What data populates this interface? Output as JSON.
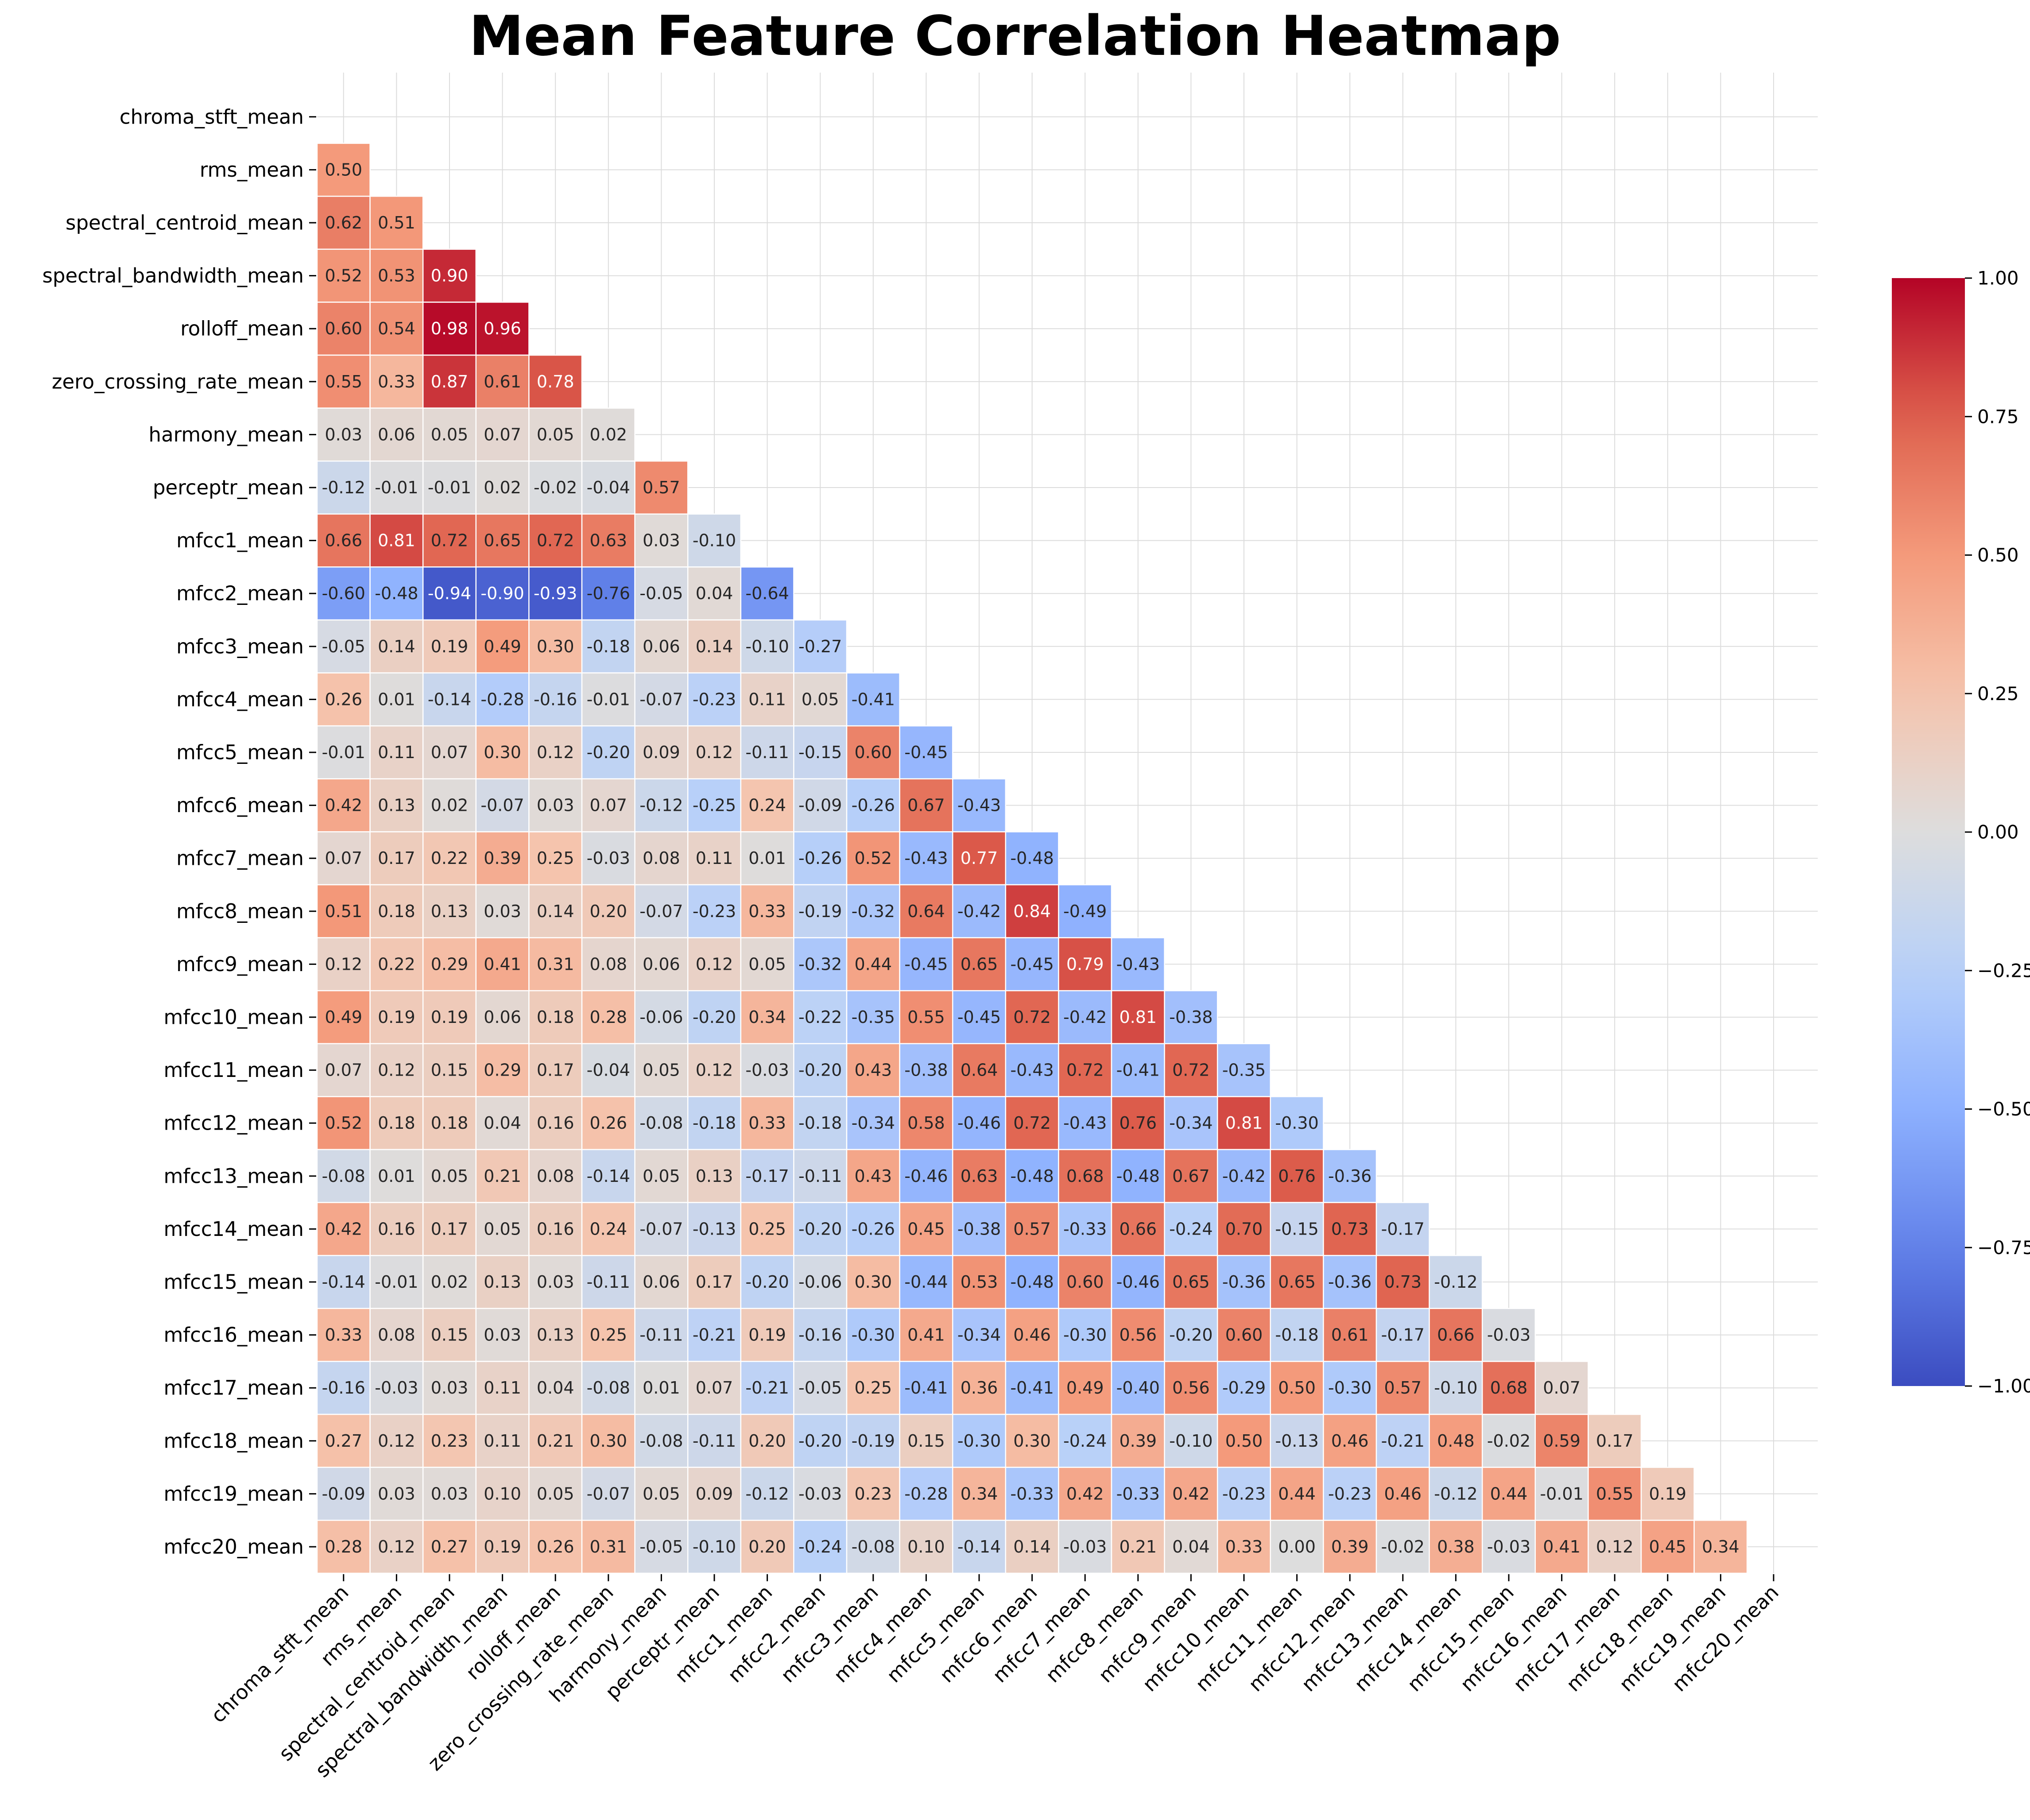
{
  "chart_data": {
    "type": "heatmap",
    "title": "Mean Feature Correlation Heatmap",
    "mask": "upper-triangle-and-diagonal",
    "labels": [
      "chroma_stft_mean",
      "rms_mean",
      "spectral_centroid_mean",
      "spectral_bandwidth_mean",
      "rolloff_mean",
      "zero_crossing_rate_mean",
      "harmony_mean",
      "perceptr_mean",
      "mfcc1_mean",
      "mfcc2_mean",
      "mfcc3_mean",
      "mfcc4_mean",
      "mfcc5_mean",
      "mfcc6_mean",
      "mfcc7_mean",
      "mfcc8_mean",
      "mfcc9_mean",
      "mfcc10_mean",
      "mfcc11_mean",
      "mfcc12_mean",
      "mfcc13_mean",
      "mfcc14_mean",
      "mfcc15_mean",
      "mfcc16_mean",
      "mfcc17_mean",
      "mfcc18_mean",
      "mfcc19_mean",
      "mfcc20_mean"
    ],
    "lower_triangle_values": [
      [],
      [
        0.5
      ],
      [
        0.62,
        0.51
      ],
      [
        0.52,
        0.53,
        0.9
      ],
      [
        0.6,
        0.54,
        0.98,
        0.96
      ],
      [
        0.55,
        0.33,
        0.87,
        0.61,
        0.78
      ],
      [
        0.03,
        0.06,
        0.05,
        0.07,
        0.05,
        0.02
      ],
      [
        -0.12,
        -0.01,
        -0.01,
        0.02,
        -0.02,
        -0.04,
        0.57
      ],
      [
        0.66,
        0.81,
        0.72,
        0.65,
        0.72,
        0.63,
        0.03,
        -0.1
      ],
      [
        -0.6,
        -0.48,
        -0.94,
        -0.9,
        -0.93,
        -0.76,
        -0.05,
        0.04,
        -0.64
      ],
      [
        -0.05,
        0.14,
        0.19,
        0.49,
        0.3,
        -0.18,
        0.06,
        0.14,
        -0.1,
        -0.27
      ],
      [
        0.26,
        0.01,
        -0.14,
        -0.28,
        -0.16,
        -0.01,
        -0.07,
        -0.23,
        0.11,
        0.05,
        -0.41
      ],
      [
        -0.01,
        0.11,
        0.07,
        0.3,
        0.12,
        -0.2,
        0.09,
        0.12,
        -0.11,
        -0.15,
        0.6,
        -0.45
      ],
      [
        0.42,
        0.13,
        0.02,
        -0.07,
        0.03,
        0.07,
        -0.12,
        -0.25,
        0.24,
        -0.09,
        -0.26,
        0.67,
        -0.43
      ],
      [
        0.07,
        0.17,
        0.22,
        0.39,
        0.25,
        -0.03,
        0.08,
        0.11,
        0.01,
        -0.26,
        0.52,
        -0.43,
        0.77,
        -0.48
      ],
      [
        0.51,
        0.18,
        0.13,
        0.03,
        0.14,
        0.2,
        -0.07,
        -0.23,
        0.33,
        -0.19,
        -0.32,
        0.64,
        -0.42,
        0.84,
        -0.49
      ],
      [
        0.12,
        0.22,
        0.29,
        0.41,
        0.31,
        0.08,
        0.06,
        0.12,
        0.05,
        -0.32,
        0.44,
        -0.45,
        0.65,
        -0.45,
        0.79,
        -0.43
      ],
      [
        0.49,
        0.19,
        0.19,
        0.06,
        0.18,
        0.28,
        -0.06,
        -0.2,
        0.34,
        -0.22,
        -0.35,
        0.55,
        -0.45,
        0.72,
        -0.42,
        0.81,
        -0.38
      ],
      [
        0.07,
        0.12,
        0.15,
        0.29,
        0.17,
        -0.04,
        0.05,
        0.12,
        -0.03,
        -0.2,
        0.43,
        -0.38,
        0.64,
        -0.43,
        0.72,
        -0.41,
        0.72,
        -0.35
      ],
      [
        0.52,
        0.18,
        0.18,
        0.04,
        0.16,
        0.26,
        -0.08,
        -0.18,
        0.33,
        -0.18,
        -0.34,
        0.58,
        -0.46,
        0.72,
        -0.43,
        0.76,
        -0.34,
        0.81,
        -0.3
      ],
      [
        -0.08,
        0.01,
        0.05,
        0.21,
        0.08,
        -0.14,
        0.05,
        0.13,
        -0.17,
        -0.11,
        0.43,
        -0.46,
        0.63,
        -0.48,
        0.68,
        -0.48,
        0.67,
        -0.42,
        0.76,
        -0.36
      ],
      [
        0.42,
        0.16,
        0.17,
        0.05,
        0.16,
        0.24,
        -0.07,
        -0.13,
        0.25,
        -0.2,
        -0.26,
        0.45,
        -0.38,
        0.57,
        -0.33,
        0.66,
        -0.24,
        0.7,
        -0.15,
        0.73,
        -0.17
      ],
      [
        -0.14,
        -0.01,
        0.02,
        0.13,
        0.03,
        -0.11,
        0.06,
        0.17,
        -0.2,
        -0.06,
        0.3,
        -0.44,
        0.53,
        -0.48,
        0.6,
        -0.46,
        0.65,
        -0.36,
        0.65,
        -0.36,
        0.73,
        -0.12
      ],
      [
        0.33,
        0.08,
        0.15,
        0.03,
        0.13,
        0.25,
        -0.11,
        -0.21,
        0.19,
        -0.16,
        -0.3,
        0.41,
        -0.34,
        0.46,
        -0.3,
        0.56,
        -0.2,
        0.6,
        -0.18,
        0.61,
        -0.17,
        0.66,
        -0.03
      ],
      [
        -0.16,
        -0.03,
        0.03,
        0.11,
        0.04,
        -0.08,
        0.01,
        0.07,
        -0.21,
        -0.05,
        0.25,
        -0.41,
        0.36,
        -0.41,
        0.49,
        -0.4,
        0.56,
        -0.29,
        0.5,
        -0.3,
        0.57,
        -0.1,
        0.68,
        0.07
      ],
      [
        0.27,
        0.12,
        0.23,
        0.11,
        0.21,
        0.3,
        -0.08,
        -0.11,
        0.2,
        -0.2,
        -0.19,
        0.15,
        -0.3,
        0.3,
        -0.24,
        0.39,
        -0.1,
        0.5,
        -0.13,
        0.46,
        -0.21,
        0.48,
        -0.02,
        0.59,
        0.17
      ],
      [
        -0.09,
        0.03,
        0.03,
        0.1,
        0.05,
        -0.07,
        0.05,
        0.09,
        -0.12,
        -0.03,
        0.23,
        -0.28,
        0.34,
        -0.33,
        0.42,
        -0.33,
        0.42,
        -0.23,
        0.44,
        -0.23,
        0.46,
        -0.12,
        0.44,
        -0.01,
        0.55,
        0.19
      ],
      [
        0.28,
        0.12,
        0.27,
        0.19,
        0.26,
        0.31,
        -0.05,
        -0.1,
        0.2,
        -0.24,
        -0.08,
        0.1,
        -0.14,
        0.14,
        -0.03,
        0.21,
        0.04,
        0.33,
        0.0,
        0.39,
        -0.02,
        0.38,
        -0.03,
        0.41,
        0.12,
        0.45,
        0.34
      ]
    ],
    "colorbar": {
      "colormap": "coolwarm",
      "vmin": -1.0,
      "vmax": 1.0,
      "ticks": [
        "1.00",
        "0.75",
        "0.50",
        "0.25",
        "0.00",
        "−0.25",
        "−0.50",
        "−0.75",
        "−1.00"
      ]
    },
    "grid": true
  }
}
